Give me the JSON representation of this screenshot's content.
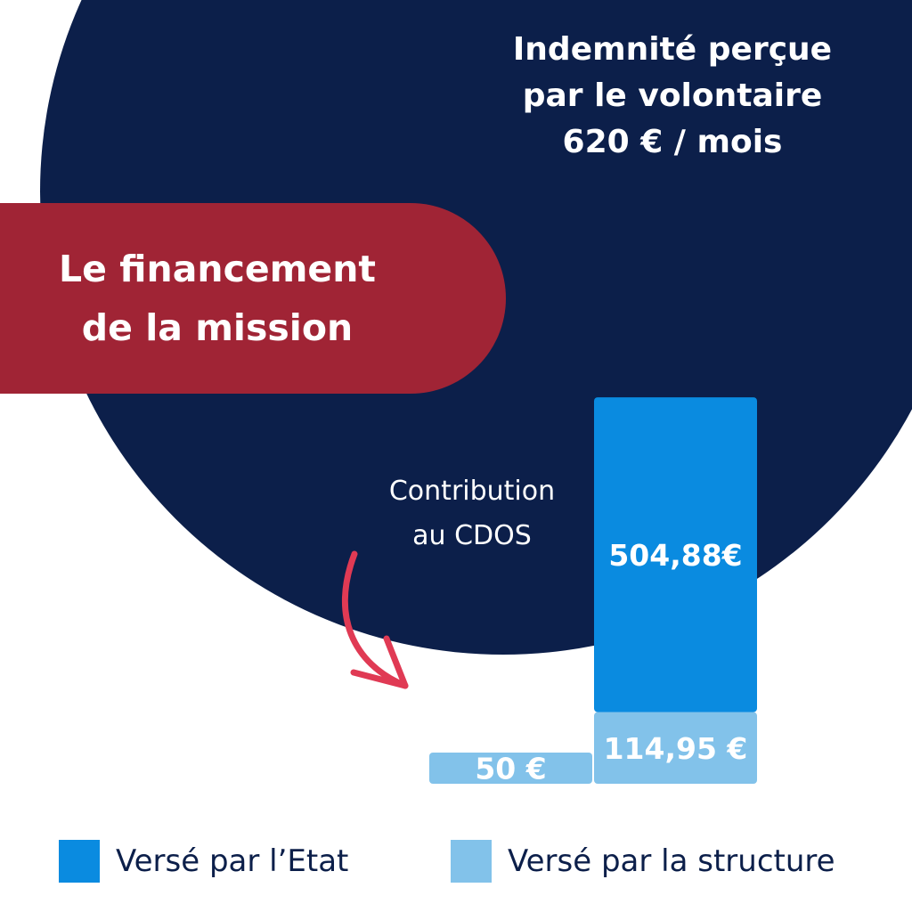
{
  "headline": {
    "line1": "Indemnité perçue",
    "line2": "par le volontaire",
    "line3": "620 € / mois"
  },
  "pill": {
    "line1": "Le financement",
    "line2": "de la mission"
  },
  "annotation": {
    "line1": "Contribution",
    "line2": "au CDOS"
  },
  "colors": {
    "navy": "#0c1f4a",
    "crimson": "#a02435",
    "etat": "#0a8be0",
    "structure": "#82c2ea",
    "arrow": "#e03a54"
  },
  "chart_data": {
    "type": "bar",
    "stacked": true,
    "categories": [
      "",
      ""
    ],
    "series": [
      {
        "name": "Versé par l’Etat",
        "values": [
          0,
          504.88
        ],
        "labels": [
          "",
          "504,88€"
        ],
        "color": "#0a8be0"
      },
      {
        "name": "Versé par la structure",
        "values": [
          50,
          114.95
        ],
        "labels": [
          "50 €",
          "114,95 €"
        ],
        "color": "#82c2ea"
      }
    ],
    "total_label": "620 € / mois",
    "legend_position": "bottom"
  },
  "legend": {
    "etat": "Versé par l’Etat",
    "structure": "Versé par la structure"
  }
}
